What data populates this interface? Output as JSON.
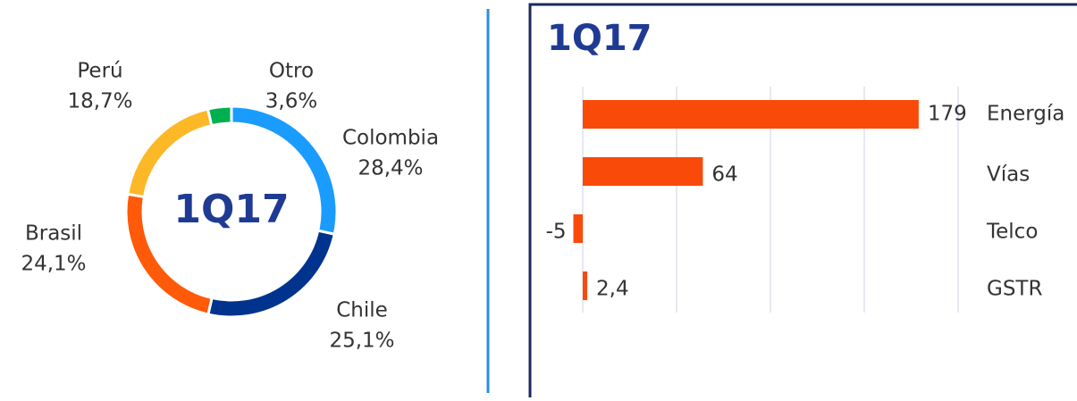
{
  "chart_data": [
    {
      "type": "donut",
      "title": "1Q17",
      "categories": [
        "Colombia",
        "Chile",
        "Brasil",
        "Perú",
        "Otro"
      ],
      "values": [
        28.4,
        25.1,
        24.1,
        18.7,
        3.6
      ],
      "value_labels": [
        "28,4%",
        "25,1%",
        "24,1%",
        "18,7%",
        "3,6%"
      ],
      "colors": [
        "#1a9cff",
        "#00338d",
        "#ff5a0a",
        "#fdb827",
        "#00b050"
      ]
    },
    {
      "type": "hbar",
      "title": "1Q17",
      "categories": [
        "Energía",
        "Vías",
        "Telco",
        "GSTR"
      ],
      "values": [
        179,
        64,
        -5,
        2.4
      ],
      "value_labels": [
        "179",
        "64",
        "-5",
        "2,4"
      ],
      "color": "#fa4a0a",
      "xlim": [
        -10,
        200
      ],
      "xticks": [
        0,
        50,
        100,
        150,
        200
      ],
      "grid": true
    }
  ]
}
